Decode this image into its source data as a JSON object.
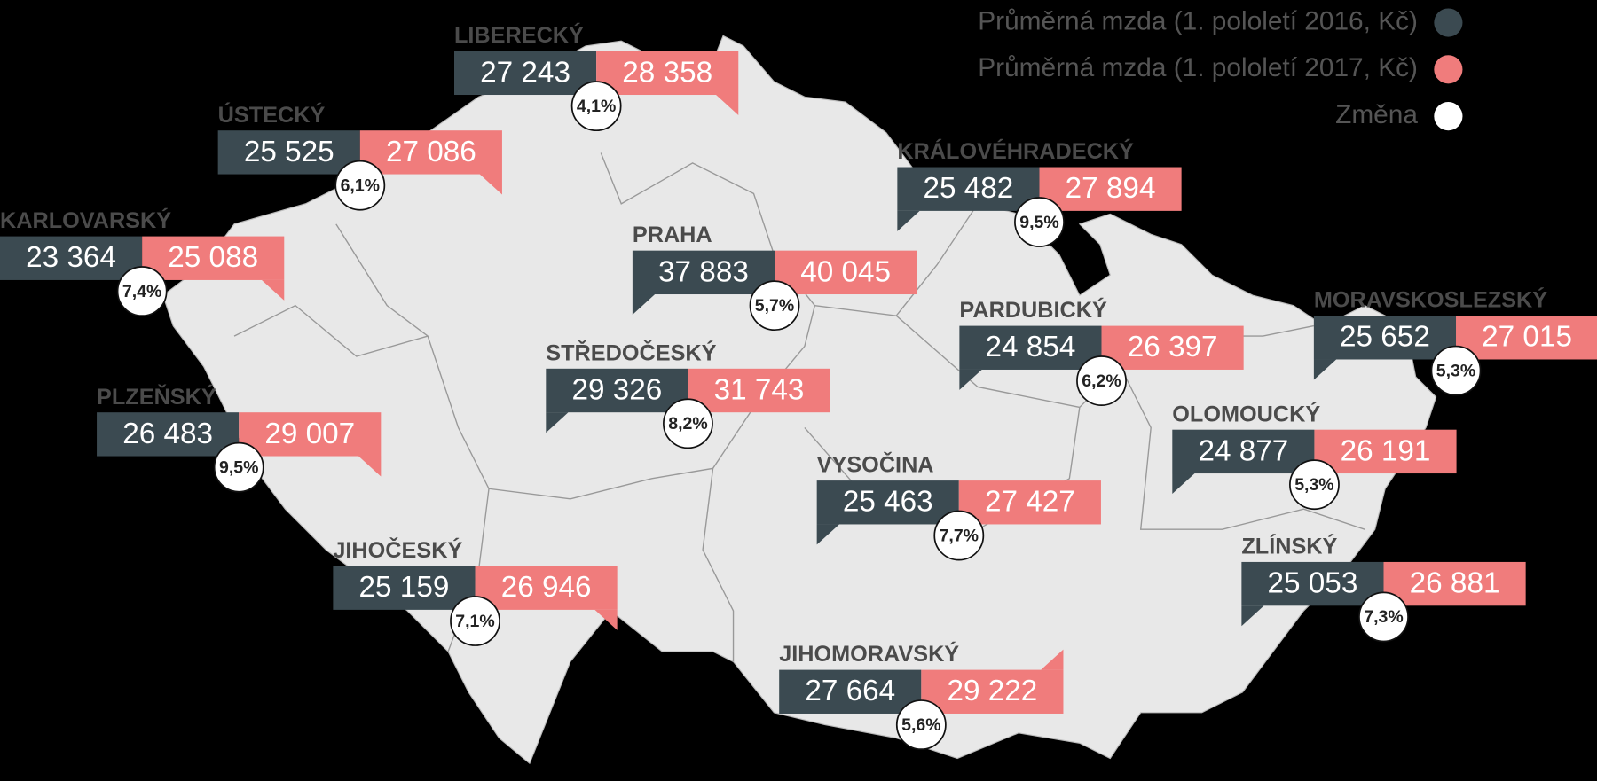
{
  "legend": {
    "items": [
      {
        "label": "Průměrná mzda (1. pololetí 2016, Kč)",
        "color": "#3b4a51"
      },
      {
        "label": "Průměrná mzda (1. pololetí 2017, Kč)",
        "color": "#f07c7c"
      },
      {
        "label": "Změna",
        "color": "#ffffff"
      }
    ]
  },
  "regions": [
    {
      "name": "LIBERECKÝ",
      "wage_2016": "27 243",
      "wage_2017": "28 358",
      "change": "4,1%"
    },
    {
      "name": "ÚSTECKÝ",
      "wage_2016": "25 525",
      "wage_2017": "27 086",
      "change": "6,1%"
    },
    {
      "name": "KARLOVARSKÝ",
      "wage_2016": "23 364",
      "wage_2017": "25 088",
      "change": "7,4%"
    },
    {
      "name": "PRAHA",
      "wage_2016": "37 883",
      "wage_2017": "40 045",
      "change": "5,7%"
    },
    {
      "name": "KRÁLOVÉHRADECKÝ",
      "wage_2016": "25 482",
      "wage_2017": "27 894",
      "change": "9,5%"
    },
    {
      "name": "PARDUBICKÝ",
      "wage_2016": "24 854",
      "wage_2017": "26 397",
      "change": "6,2%"
    },
    {
      "name": "MORAVSKOSLEZSKÝ",
      "wage_2016": "25 652",
      "wage_2017": "27 015",
      "change": "5,3%"
    },
    {
      "name": "STŘEDOČESKÝ",
      "wage_2016": "29 326",
      "wage_2017": "31 743",
      "change": "8,2%"
    },
    {
      "name": "PLZEŇSKÝ",
      "wage_2016": "26 483",
      "wage_2017": "29 007",
      "change": "9,5%"
    },
    {
      "name": "OLOMOUCKÝ",
      "wage_2016": "24 877",
      "wage_2017": "26 191",
      "change": "5,3%"
    },
    {
      "name": "VYSOČINA",
      "wage_2016": "25 463",
      "wage_2017": "27 427",
      "change": "7,7%"
    },
    {
      "name": "JIHOČESKÝ",
      "wage_2016": "25 159",
      "wage_2017": "26 946",
      "change": "7,1%"
    },
    {
      "name": "ZLÍNSKÝ",
      "wage_2016": "25 053",
      "wage_2017": "26 881",
      "change": "7,3%"
    },
    {
      "name": "JIHOMORAVSKÝ",
      "wage_2016": "27 664",
      "wage_2017": "29 222",
      "change": "5,6%"
    }
  ]
}
